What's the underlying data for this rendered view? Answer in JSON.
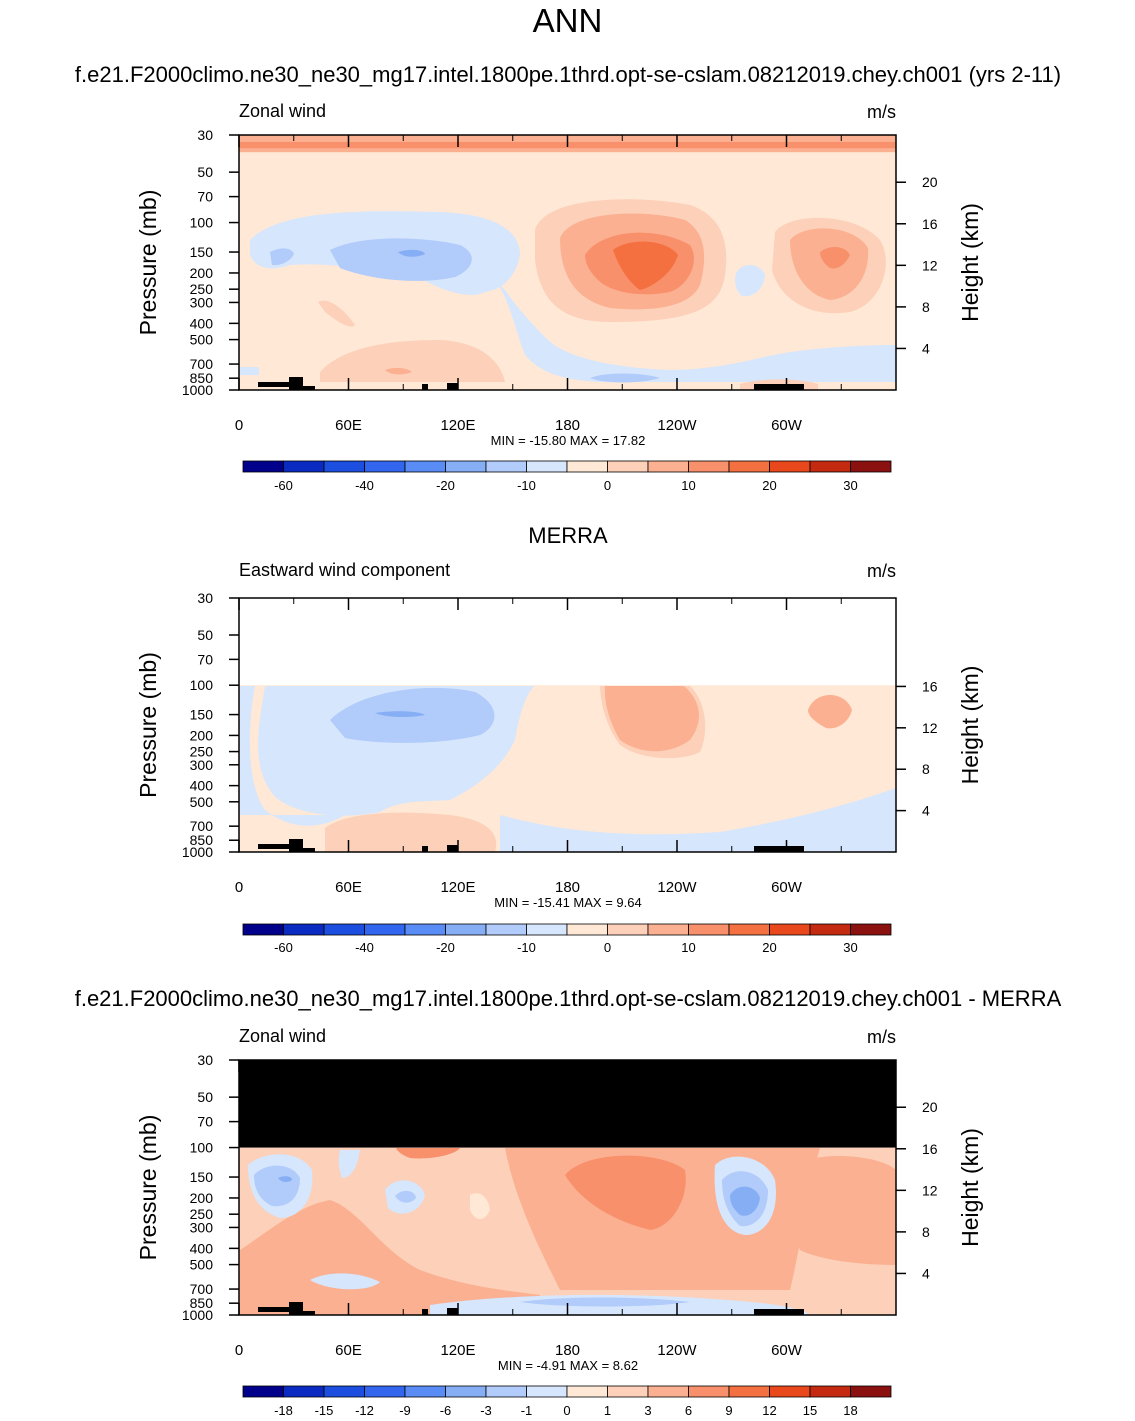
{
  "page": {
    "main_title": "ANN",
    "case_name": "f.e21.F2000climo.ne30_ne30_mg17.intel.1800pe.1thrd.opt-se-cslam.08212019.chey.ch001"
  },
  "chart_data": [
    {
      "type": "contour",
      "title": "f.e21.F2000climo.ne30_ne30_mg17.intel.1800pe.1thrd.opt-se-cslam.08212019.chey.ch001 (yrs 2-11)",
      "left_string": "Zonal wind",
      "right_string": "m/s",
      "ylabel": "Pressure (mb)",
      "ylabel_right": "Height (km)",
      "x_ticks": [
        "0",
        "60E",
        "120E",
        "180",
        "120W",
        "60W"
      ],
      "x_tick_values": [
        0,
        60,
        120,
        180,
        240,
        300
      ],
      "xlim": [
        0,
        360
      ],
      "ylim_mb": [
        1000,
        30
      ],
      "y_ticks": [
        "30",
        "50",
        "70",
        "100",
        "150",
        "200",
        "250",
        "300",
        "400",
        "500",
        "700",
        "850",
        "1000"
      ],
      "y_tick_values": [
        30,
        50,
        70,
        100,
        150,
        200,
        250,
        300,
        400,
        500,
        700,
        850,
        1000
      ],
      "height_ticks": [
        "4",
        "8",
        "12",
        "16",
        "20"
      ],
      "height_tick_values": [
        4,
        8,
        12,
        16,
        20
      ],
      "minmax": "MIN = -15.80  MAX =  17.82",
      "min": -15.8,
      "max": 17.82,
      "colorbar_labels": [
        "-60",
        "-40",
        "-20",
        "-10",
        "0",
        "10",
        "20",
        "30"
      ],
      "colorbar_colors": [
        "#00008b",
        "#0a2bc2",
        "#1c4fe0",
        "#3366ee",
        "#5a8cf5",
        "#86aef5",
        "#b1cbfa",
        "#d6e6fc",
        "#ffe8d6",
        "#fdd0b9",
        "#fbb191",
        "#f8906c",
        "#f57040",
        "#e8481c",
        "#c42a0f",
        "#8b1010"
      ],
      "colorbar_label_positions": [
        1,
        3,
        5,
        7,
        9,
        11,
        13,
        15
      ]
    },
    {
      "type": "contour",
      "title": "MERRA",
      "left_string": "Eastward wind component",
      "right_string": "m/s",
      "ylabel": "Pressure (mb)",
      "ylabel_right": "Height (km)",
      "x_ticks": [
        "0",
        "60E",
        "120E",
        "180",
        "120W",
        "60W"
      ],
      "x_tick_values": [
        0,
        60,
        120,
        180,
        240,
        300
      ],
      "xlim": [
        0,
        360
      ],
      "ylim_mb": [
        1000,
        30
      ],
      "y_ticks": [
        "30",
        "50",
        "70",
        "100",
        "150",
        "200",
        "250",
        "300",
        "400",
        "500",
        "700",
        "850",
        "1000"
      ],
      "y_tick_values": [
        30,
        50,
        70,
        100,
        150,
        200,
        250,
        300,
        400,
        500,
        700,
        850,
        1000
      ],
      "height_ticks": [
        "4",
        "8",
        "12",
        "16"
      ],
      "height_tick_values": [
        4,
        8,
        12,
        16
      ],
      "minmax": "MIN = -15.41  MAX =   9.64",
      "min": -15.41,
      "max": 9.64,
      "colorbar_labels": [
        "-60",
        "-40",
        "-20",
        "-10",
        "0",
        "10",
        "20",
        "30"
      ],
      "colorbar_colors": [
        "#00008b",
        "#0a2bc2",
        "#1c4fe0",
        "#3366ee",
        "#5a8cf5",
        "#86aef5",
        "#b1cbfa",
        "#d6e6fc",
        "#ffe8d6",
        "#fdd0b9",
        "#fbb191",
        "#f8906c",
        "#f57040",
        "#e8481c",
        "#c42a0f",
        "#8b1010"
      ],
      "colorbar_label_positions": [
        1,
        3,
        5,
        7,
        9,
        11,
        13,
        15
      ]
    },
    {
      "type": "contour",
      "title": "f.e21.F2000climo.ne30_ne30_mg17.intel.1800pe.1thrd.opt-se-cslam.08212019.chey.ch001 - MERRA",
      "left_string": "Zonal wind",
      "right_string": "m/s",
      "ylabel": "Pressure (mb)",
      "ylabel_right": "Height (km)",
      "x_ticks": [
        "0",
        "60E",
        "120E",
        "180",
        "120W",
        "60W"
      ],
      "x_tick_values": [
        0,
        60,
        120,
        180,
        240,
        300
      ],
      "xlim": [
        0,
        360
      ],
      "ylim_mb": [
        1000,
        30
      ],
      "y_ticks": [
        "30",
        "50",
        "70",
        "100",
        "150",
        "200",
        "250",
        "300",
        "400",
        "500",
        "700",
        "850",
        "1000"
      ],
      "y_tick_values": [
        30,
        50,
        70,
        100,
        150,
        200,
        250,
        300,
        400,
        500,
        700,
        850,
        1000
      ],
      "height_ticks": [
        "4",
        "8",
        "12",
        "16",
        "20"
      ],
      "height_tick_values": [
        4,
        8,
        12,
        16,
        20
      ],
      "minmax": "MIN =  -4.91  MAX =   8.62",
      "min": -4.91,
      "max": 8.62,
      "colorbar_labels": [
        "-18",
        "-15",
        "-12",
        "-9",
        "-6",
        "-3",
        "-1",
        "0",
        "1",
        "3",
        "6",
        "9",
        "12",
        "15",
        "18"
      ],
      "colorbar_colors": [
        "#00008b",
        "#0a2bc2",
        "#1c4fe0",
        "#3366ee",
        "#5a8cf5",
        "#86aef5",
        "#b1cbfa",
        "#d6e6fc",
        "#ffe8d6",
        "#fdd0b9",
        "#fbb191",
        "#f8906c",
        "#f57040",
        "#e8481c",
        "#c42a0f",
        "#8b1010"
      ],
      "colorbar_label_positions": [
        1,
        2,
        3,
        4,
        5,
        6,
        7,
        8,
        9,
        10,
        11,
        12,
        13,
        14,
        15
      ]
    }
  ]
}
